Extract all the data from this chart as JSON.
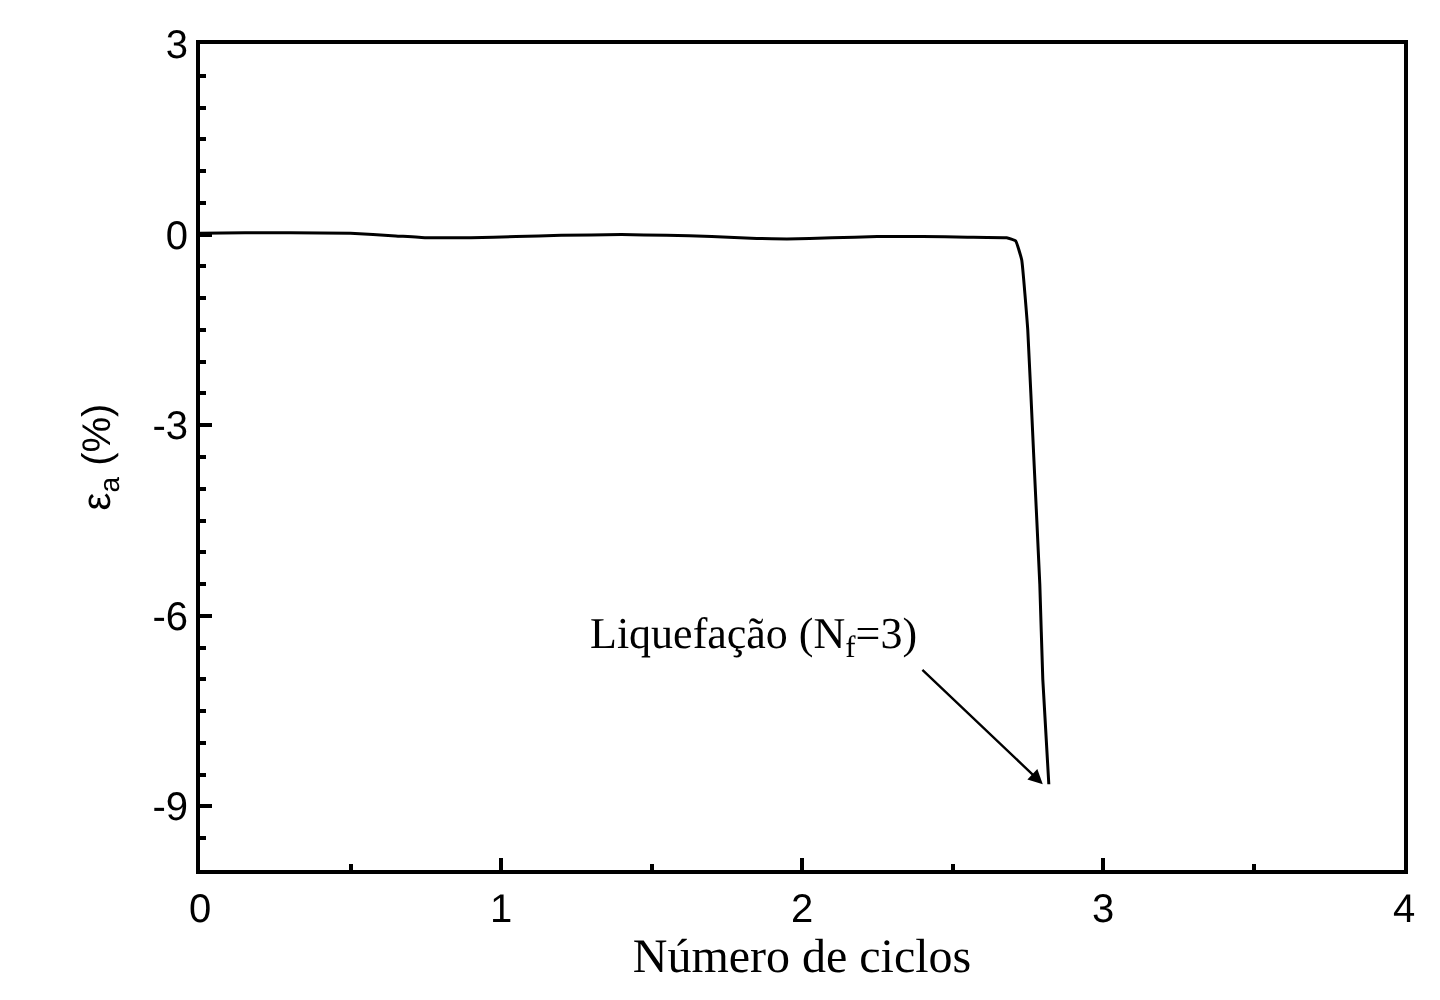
{
  "chart_data": {
    "type": "line",
    "xlabel": "Número de ciclos",
    "ylabel": "ε$_{a}$ (%)",
    "x": [
      0,
      0.15,
      0.3,
      0.5,
      0.65,
      0.75,
      0.9,
      1.05,
      1.2,
      1.4,
      1.55,
      1.7,
      1.85,
      1.95,
      2.1,
      2.25,
      2.4,
      2.55,
      2.68,
      2.71,
      2.73,
      2.75,
      2.77,
      2.79,
      2.8,
      2.82
    ],
    "series": [
      {
        "color": "#000000",
        "values": [
          0.02,
          0.03,
          0.03,
          0.02,
          -0.02,
          -0.05,
          -0.05,
          -0.03,
          -0.01,
          0,
          -0.01,
          -0.03,
          -0.06,
          -0.07,
          -0.05,
          -0.03,
          -0.03,
          -0.04,
          -0.05,
          -0.1,
          -0.4,
          -1.5,
          -3.5,
          -5.5,
          -7,
          -8.65
        ]
      }
    ],
    "xlim": [
      0,
      4
    ],
    "ylim": [
      -10,
      3
    ],
    "xticks": [
      0,
      1,
      2,
      3,
      4
    ],
    "yticks": [
      -9,
      -6,
      -3,
      0,
      3
    ],
    "legend": false,
    "marker": "none",
    "line_style": "solid",
    "annotations": [
      {
        "text": "Liquefação (N$_{f}$=3)",
        "x": 2.8,
        "y": -8.65
      }
    ]
  }
}
